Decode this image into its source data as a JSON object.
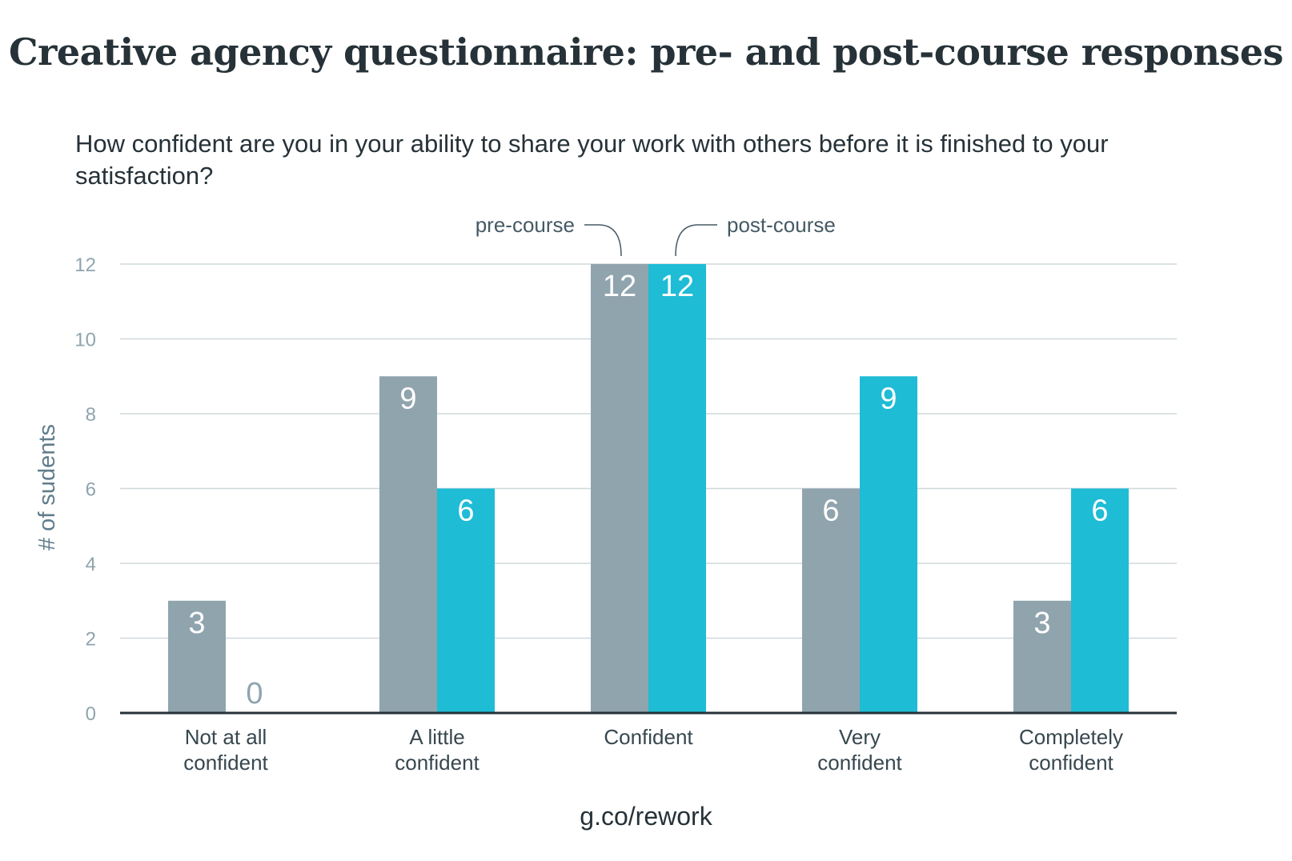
{
  "colors": {
    "pre": "#90a4ae",
    "post": "#1fbcd6",
    "grid": "#cfd8dc",
    "axis": "#263238"
  },
  "chart_data": {
    "type": "bar",
    "title": "Creative agency questionnaire: pre- and post-course responses",
    "subtitle": "How confident are you in your ability to share your work with others before it is finished to your satisfaction?",
    "xlabel": "",
    "ylabel": "# of sudents",
    "ylim": [
      0,
      12
    ],
    "yticks": [
      0,
      2,
      4,
      6,
      8,
      10,
      12
    ],
    "grid": true,
    "categories": [
      [
        "Not at all",
        "confident"
      ],
      [
        "A little",
        "confident"
      ],
      [
        "Confident"
      ],
      [
        "Very",
        "confident"
      ],
      [
        "Completely",
        "confident"
      ]
    ],
    "series": [
      {
        "name": "pre-course",
        "values": [
          3,
          9,
          12,
          6,
          3
        ]
      },
      {
        "name": "post-course",
        "values": [
          0,
          6,
          12,
          9,
          6
        ]
      }
    ],
    "source": "g.co/rework"
  }
}
